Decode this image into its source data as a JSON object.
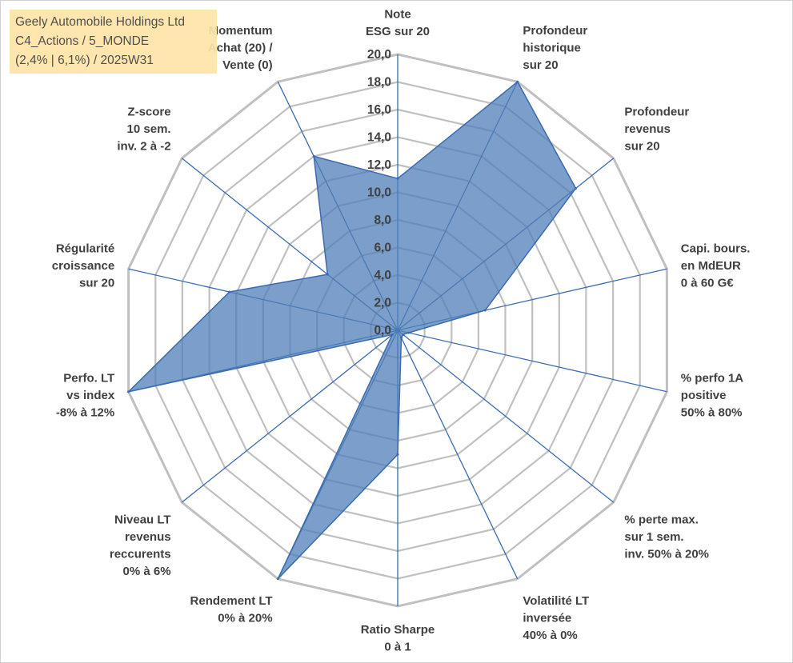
{
  "title_box": {
    "line1": "Geely Automobile Holdings Ltd",
    "line2": "C4_Actions / 5_MONDE",
    "line3": "(2,4% | 6,1%) / 2025W31"
  },
  "colors": {
    "fill": "#4f7fb8",
    "stroke": "#3a6bb0",
    "grid": "#c0c0c0",
    "spoke": "#3a6bb0",
    "title_bg": "#ffe4a8"
  },
  "chart_data": {
    "type": "radar",
    "rmin": 0,
    "rmax": 20,
    "ticks": [
      0,
      2,
      4,
      6,
      8,
      10,
      12,
      14,
      16,
      18,
      20
    ],
    "tick_labels": [
      "0,0",
      "2,0",
      "4,0",
      "6,0",
      "8,0",
      "10,0",
      "12,0",
      "14,0",
      "16,0",
      "18,0",
      "20,0"
    ],
    "grid": true,
    "axes": [
      {
        "label": [
          "Note",
          "ESG sur 20"
        ],
        "value": 11.0
      },
      {
        "label": [
          "Profondeur",
          "historique",
          "sur 20"
        ],
        "value": 20.0
      },
      {
        "label": [
          "Profondeur",
          "revenus",
          "sur 20"
        ],
        "value": 16.5
      },
      {
        "label": [
          "Capi. bours.",
          "en MdEUR",
          "0 à 60 G€"
        ],
        "value": 6.5
      },
      {
        "label": [
          "% perfo 1A",
          "positive",
          "50% à 80%"
        ],
        "value": 0.8
      },
      {
        "label": [
          "% perte max.",
          "sur 1 sem.",
          "inv. 50% à 20%"
        ],
        "value": 0.5
      },
      {
        "label": [
          "Volatilité LT",
          "inversée",
          "40% à 0%"
        ],
        "value": 0.6
      },
      {
        "label": [
          "Ratio Sharpe",
          "0 à 1"
        ],
        "value": 9.0
      },
      {
        "label": [
          "Rendement LT",
          "0% à 20%"
        ],
        "value": 20.0
      },
      {
        "label": [
          "Niveau LT",
          "revenus",
          "reccurents",
          "0% à 6%"
        ],
        "value": 0.5
      },
      {
        "label": [
          "Perfo. LT",
          "vs index",
          "-8% à 12%"
        ],
        "value": 20.0
      },
      {
        "label": [
          "Régularité",
          "croissance",
          "sur 20"
        ],
        "value": 12.5
      },
      {
        "label": [
          "Z-score",
          "10 sem.",
          "inv. 2 à -2"
        ],
        "value": 6.5
      },
      {
        "label": [
          "Momentum",
          "Achat (20) /",
          "Vente (0)"
        ],
        "value": 14.0
      }
    ]
  }
}
